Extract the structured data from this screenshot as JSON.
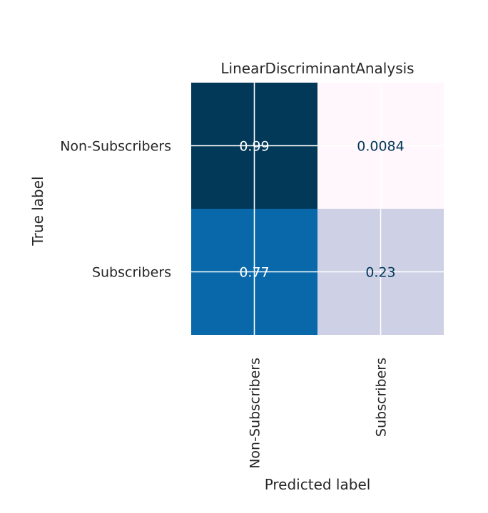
{
  "chart_data": {
    "type": "heatmap",
    "title": "LinearDiscriminantAnalysis",
    "xlabel": "Predicted label",
    "ylabel": "True label",
    "x_categories": [
      "Non-Subscribers",
      "Subscribers"
    ],
    "y_categories": [
      "Non-Subscribers",
      "Subscribers"
    ],
    "values": [
      [
        0.99,
        0.0084
      ],
      [
        0.77,
        0.23
      ]
    ],
    "value_labels": [
      [
        "0.99",
        "0.0084"
      ],
      [
        "0.77",
        "0.23"
      ]
    ],
    "colormap": "PuBu",
    "vmin": 0.0084,
    "vmax": 0.99,
    "colors": {
      "low": "#fff7fb",
      "mid_low": "#d0d1e6",
      "mid_high": "#0767a9",
      "high": "#023858",
      "text_on_dark": "#ffffff",
      "text_on_light": "#023858"
    },
    "grid": true
  }
}
